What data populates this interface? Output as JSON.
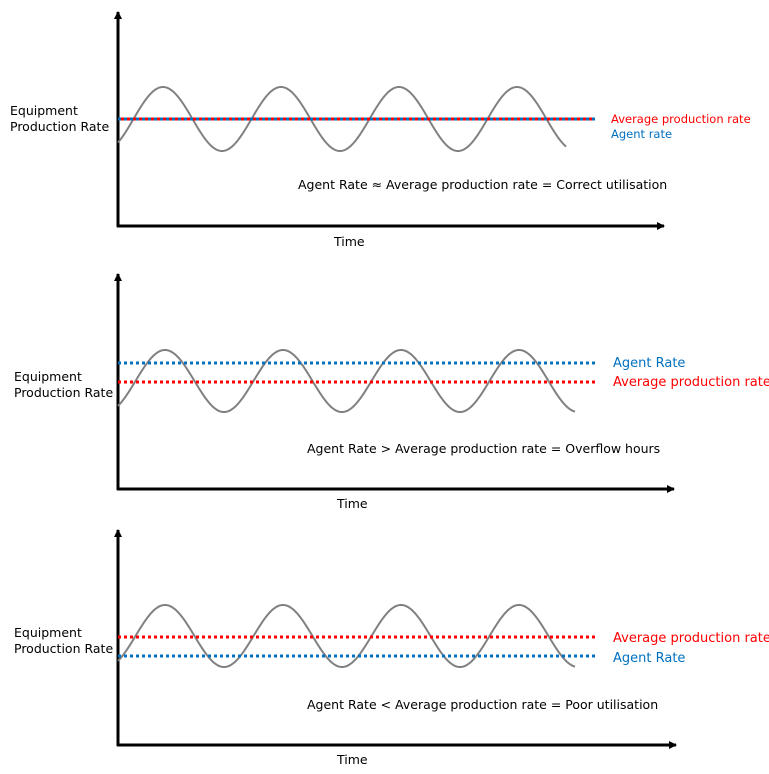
{
  "colors": {
    "average": "#ff0000",
    "agent": "#0070c0",
    "wave": "#808080",
    "axis": "#000000"
  },
  "panels": [
    {
      "ylabel_line1": "Equipment",
      "ylabel_line2": "Production Rate",
      "xlabel": "Time",
      "legend_top": "Average production rate",
      "legend_bottom": "Agent rate",
      "caption": "Agent Rate ≈  Average production rate = Correct utilisation"
    },
    {
      "ylabel_line1": "Equipment",
      "ylabel_line2": "Production Rate",
      "xlabel": "Time",
      "legend_top": "Agent Rate",
      "legend_bottom": "Average production rate",
      "caption": "Agent Rate > Average production rate = Overflow hours"
    },
    {
      "ylabel_line1": "Equipment",
      "ylabel_line2": "Production Rate",
      "xlabel": "Time",
      "legend_top": "Average production rate",
      "legend_bottom": "Agent Rate",
      "caption": "Agent Rate <  Average production rate = Poor utilisation"
    }
  ]
}
